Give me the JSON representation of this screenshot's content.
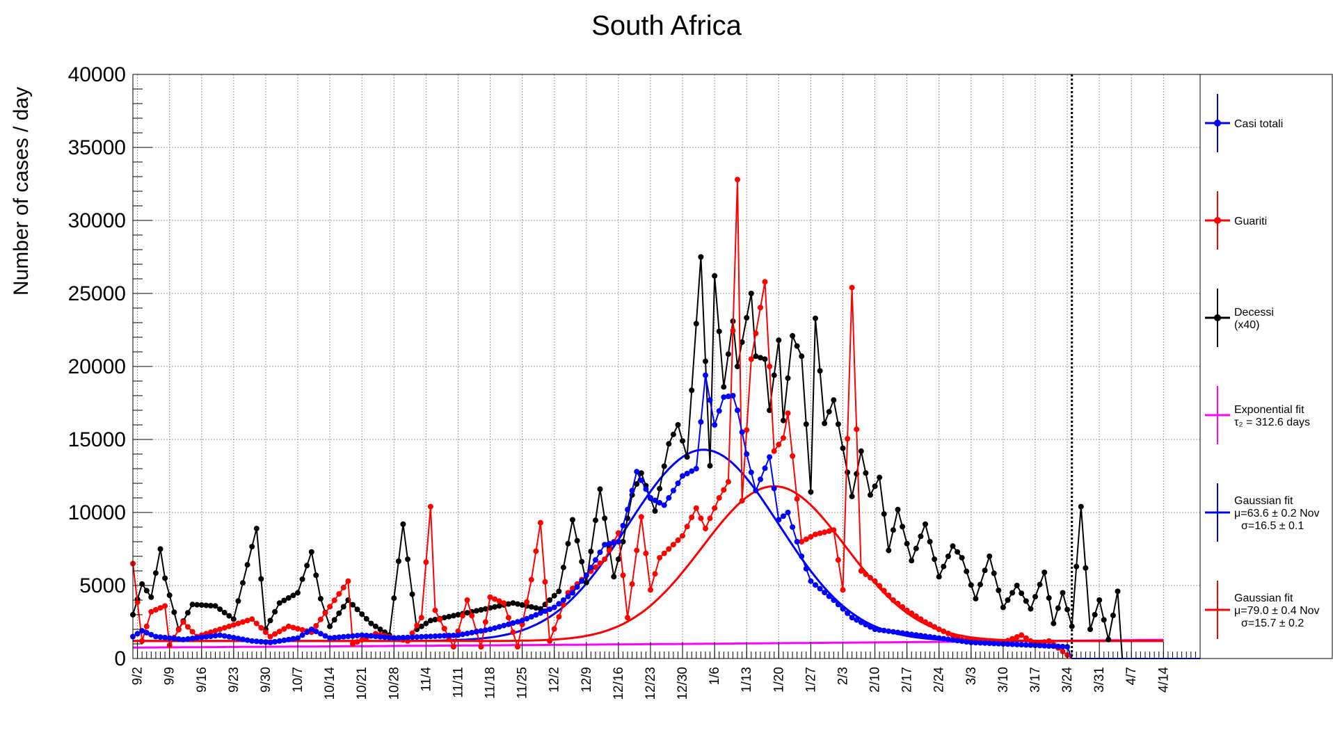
{
  "chart_data": {
    "type": "line",
    "title": "South Africa",
    "ylabel": "Number of cases / day",
    "xlabel": "",
    "ylim": [
      0,
      40000
    ],
    "yticks": [
      0,
      5000,
      10000,
      15000,
      20000,
      25000,
      30000,
      35000,
      40000
    ],
    "ytick_labels": [
      "0",
      "5000",
      "10000",
      "15000",
      "20000",
      "25000",
      "30000",
      "35000",
      "40000"
    ],
    "x_start": "9/1",
    "x_end": "4/22",
    "date_ticks": [
      "9/2",
      "9/9",
      "9/16",
      "9/23",
      "9/30",
      "10/7",
      "10/14",
      "10/21",
      "10/28",
      "11/4",
      "11/11",
      "11/18",
      "11/25",
      "12/2",
      "12/9",
      "12/16",
      "12/23",
      "12/30",
      "1/6",
      "1/13",
      "1/20",
      "1/27",
      "2/3",
      "2/10",
      "2/17",
      "2/24",
      "3/3",
      "3/10",
      "3/17",
      "3/24",
      "3/31",
      "4/7",
      "4/14"
    ],
    "grid": true,
    "legend_position": "right",
    "vertical_marker_date": "3/25",
    "colors": {
      "casi": "#0000ff",
      "guariti": "#ff0000",
      "decessi": "#000000",
      "exp_fit": "#ff00ff",
      "gauss_casi": "#0000ff",
      "gauss_guariti": "#ff0000"
    },
    "series": [
      {
        "name": "Casi totali",
        "color": "#0000ff",
        "knots": [
          [
            "9/1",
            1500
          ],
          [
            "9/3",
            1900
          ],
          [
            "9/6",
            1500
          ],
          [
            "9/12",
            1300
          ],
          [
            "9/20",
            1600
          ],
          [
            "9/27",
            1200
          ],
          [
            "10/1",
            1100
          ],
          [
            "10/7",
            1400
          ],
          [
            "10/10",
            2000
          ],
          [
            "10/14",
            1400
          ],
          [
            "10/21",
            1600
          ],
          [
            "10/28",
            1400
          ],
          [
            "11/4",
            1500
          ],
          [
            "11/11",
            1600
          ],
          [
            "11/18",
            2000
          ],
          [
            "11/25",
            2600
          ],
          [
            "12/2",
            3500
          ],
          [
            "12/6",
            4500
          ],
          [
            "12/9",
            5700
          ],
          [
            "12/13",
            7800
          ],
          [
            "12/16",
            8000
          ],
          [
            "12/18",
            10200
          ],
          [
            "12/20",
            12800
          ],
          [
            "12/23",
            11000
          ],
          [
            "12/26",
            10500
          ],
          [
            "12/30",
            12500
          ],
          [
            "1/2",
            13000
          ],
          [
            "1/4",
            19400
          ],
          [
            "1/6",
            16000
          ],
          [
            "1/8",
            17900
          ],
          [
            "1/10",
            18000
          ],
          [
            "1/11",
            17000
          ],
          [
            "1/13",
            14000
          ],
          [
            "1/15",
            11500
          ],
          [
            "1/18",
            13800
          ],
          [
            "1/20",
            9500
          ],
          [
            "1/22",
            10000
          ],
          [
            "1/25",
            7000
          ],
          [
            "1/27",
            5300
          ],
          [
            "2/1",
            4000
          ],
          [
            "2/5",
            2800
          ],
          [
            "2/10",
            2000
          ],
          [
            "2/17",
            1700
          ],
          [
            "2/24",
            1400
          ],
          [
            "3/3",
            1100
          ],
          [
            "3/10",
            1000
          ],
          [
            "3/17",
            900
          ],
          [
            "3/24",
            800
          ],
          [
            "3/25",
            0
          ],
          [
            "4/22",
            0
          ]
        ]
      },
      {
        "name": "Guariti",
        "color": "#ff0000",
        "knots": [
          [
            "9/1",
            6500
          ],
          [
            "9/3",
            1200
          ],
          [
            "9/5",
            3200
          ],
          [
            "9/8",
            3600
          ],
          [
            "9/9",
            900
          ],
          [
            "9/12",
            2500
          ],
          [
            "9/15",
            1500
          ],
          [
            "9/20",
            2000
          ],
          [
            "9/27",
            2700
          ],
          [
            "10/1",
            1500
          ],
          [
            "10/5",
            2200
          ],
          [
            "10/10",
            1800
          ],
          [
            "10/18",
            5300
          ],
          [
            "10/19",
            1000
          ],
          [
            "10/24",
            1700
          ],
          [
            "10/31",
            1200
          ],
          [
            "11/3",
            2800
          ],
          [
            "11/5",
            10400
          ],
          [
            "11/6",
            3300
          ],
          [
            "11/10",
            800
          ],
          [
            "11/13",
            4000
          ],
          [
            "11/16",
            800
          ],
          [
            "11/18",
            4200
          ],
          [
            "11/21",
            3800
          ],
          [
            "11/24",
            800
          ],
          [
            "11/27",
            5400
          ],
          [
            "11/29",
            9300
          ],
          [
            "12/1",
            1200
          ],
          [
            "12/5",
            4500
          ],
          [
            "12/9",
            5700
          ],
          [
            "12/13",
            6800
          ],
          [
            "12/16",
            8600
          ],
          [
            "12/18",
            2800
          ],
          [
            "12/21",
            9700
          ],
          [
            "12/23",
            4700
          ],
          [
            "12/25",
            6900
          ],
          [
            "12/28",
            7800
          ],
          [
            "12/30",
            8400
          ],
          [
            "1/2",
            10300
          ],
          [
            "1/4",
            8900
          ],
          [
            "1/7",
            11000
          ],
          [
            "1/9",
            12100
          ],
          [
            "1/11",
            32800
          ],
          [
            "1/12",
            10800
          ],
          [
            "1/14",
            20500
          ],
          [
            "1/17",
            25800
          ],
          [
            "1/19",
            14200
          ],
          [
            "1/21",
            15100
          ],
          [
            "1/22",
            16800
          ],
          [
            "1/25",
            8000
          ],
          [
            "1/28",
            8500
          ],
          [
            "2/1",
            8800
          ],
          [
            "2/3",
            4700
          ],
          [
            "2/5",
            25400
          ],
          [
            "2/7",
            6000
          ],
          [
            "2/10",
            5300
          ],
          [
            "2/14",
            4000
          ],
          [
            "2/17",
            3300
          ],
          [
            "2/21",
            2500
          ],
          [
            "2/24",
            2000
          ],
          [
            "3/1",
            1300
          ],
          [
            "3/6",
            1200
          ],
          [
            "3/10",
            1100
          ],
          [
            "3/14",
            1600
          ],
          [
            "3/17",
            1000
          ],
          [
            "3/20",
            1200
          ],
          [
            "3/25",
            0
          ],
          [
            "4/22",
            0
          ]
        ]
      },
      {
        "name": "Decessi",
        "color": "#000000",
        "knots": [
          [
            "9/1",
            3000
          ],
          [
            "9/3",
            5100
          ],
          [
            "9/5",
            4200
          ],
          [
            "9/7",
            7500
          ],
          [
            "9/8",
            5500
          ],
          [
            "9/11",
            2000
          ],
          [
            "9/14",
            3700
          ],
          [
            "9/19",
            3600
          ],
          [
            "9/23",
            2700
          ],
          [
            "9/28",
            8900
          ],
          [
            "9/30",
            2000
          ],
          [
            "10/3",
            3800
          ],
          [
            "10/7",
            4500
          ],
          [
            "10/10",
            7300
          ],
          [
            "10/12",
            4100
          ],
          [
            "10/14",
            2200
          ],
          [
            "10/18",
            4000
          ],
          [
            "10/23",
            2400
          ],
          [
            "10/27",
            1600
          ],
          [
            "10/30",
            9200
          ],
          [
            "11/2",
            2000
          ],
          [
            "11/5",
            2600
          ],
          [
            "11/11",
            3000
          ],
          [
            "11/17",
            3400
          ],
          [
            "11/23",
            3800
          ],
          [
            "11/29",
            3400
          ],
          [
            "12/3",
            4600
          ],
          [
            "12/6",
            9500
          ],
          [
            "12/9",
            5200
          ],
          [
            "12/12",
            11600
          ],
          [
            "12/15",
            5600
          ],
          [
            "12/17",
            8000
          ],
          [
            "12/19",
            11200
          ],
          [
            "12/21",
            12700
          ],
          [
            "12/24",
            10100
          ],
          [
            "12/27",
            14700
          ],
          [
            "12/29",
            16000
          ],
          [
            "12/31",
            13800
          ],
          [
            "1/3",
            27500
          ],
          [
            "1/5",
            13200
          ],
          [
            "1/6",
            26200
          ],
          [
            "1/8",
            18600
          ],
          [
            "1/10",
            23100
          ],
          [
            "1/11",
            20000
          ],
          [
            "1/14",
            25000
          ],
          [
            "1/15",
            20700
          ],
          [
            "1/17",
            20500
          ],
          [
            "1/18",
            17000
          ],
          [
            "1/20",
            21800
          ],
          [
            "1/21",
            16300
          ],
          [
            "1/23",
            22100
          ],
          [
            "1/25",
            20700
          ],
          [
            "1/27",
            11400
          ],
          [
            "1/28",
            23300
          ],
          [
            "1/30",
            16100
          ],
          [
            "2/1",
            17700
          ],
          [
            "2/3",
            14400
          ],
          [
            "2/5",
            11100
          ],
          [
            "2/7",
            14200
          ],
          [
            "2/9",
            11200
          ],
          [
            "2/11",
            12400
          ],
          [
            "2/13",
            7400
          ],
          [
            "2/15",
            10200
          ],
          [
            "2/18",
            6700
          ],
          [
            "2/21",
            9200
          ],
          [
            "2/24",
            5600
          ],
          [
            "2/27",
            7700
          ],
          [
            "3/1",
            6900
          ],
          [
            "3/4",
            4100
          ],
          [
            "3/7",
            7000
          ],
          [
            "3/10",
            3500
          ],
          [
            "3/13",
            5000
          ],
          [
            "3/16",
            3400
          ],
          [
            "3/19",
            5900
          ],
          [
            "3/21",
            2400
          ],
          [
            "3/23",
            4500
          ],
          [
            "3/25",
            2200
          ],
          [
            "3/27",
            10400
          ],
          [
            "3/29",
            2000
          ],
          [
            "3/31",
            4000
          ],
          [
            "4/2",
            1300
          ],
          [
            "4/4",
            4600
          ],
          [
            "4/5",
            0
          ],
          [
            "4/22",
            0
          ]
        ]
      }
    ],
    "fits": [
      {
        "name": "Exponential fit",
        "params": [
          "τ₂ = 312.6 days"
        ],
        "color": "#ff00ff",
        "kind": "exponential",
        "y_start": 750,
        "y_end": 1280,
        "tau_days": 312.6
      },
      {
        "name": "Gaussian fit",
        "params": [
          "μ=63.6 ± 0.2 Nov",
          "σ=16.5 ± 0.1"
        ],
        "color": "#0000ff",
        "kind": "gaussian",
        "mu_nov": 63.6,
        "sigma": 16.5,
        "amp": 13100,
        "base": 1200
      },
      {
        "name": "Gaussian fit",
        "params": [
          "μ=79.0 ± 0.4 Nov",
          "σ=15.7 ± 0.2"
        ],
        "color": "#ff0000",
        "kind": "gaussian",
        "mu_nov": 79.0,
        "sigma": 15.7,
        "amp": 10600,
        "base": 1200
      }
    ],
    "legend": [
      {
        "label": "Casi totali",
        "sublabel": "",
        "color": "#0000ff",
        "marker": true
      },
      {
        "label": "Guariti",
        "sublabel": "",
        "color": "#ff0000",
        "marker": true
      },
      {
        "label": "Decessi",
        "sublabel": "(x40)",
        "color": "#000000",
        "marker": true
      },
      {
        "label": "Exponential fit",
        "sublabel": "τ₂ = 312.6 days",
        "color": "#ff00ff",
        "marker": false
      },
      {
        "label": "Gaussian fit",
        "sublabel": "μ=63.6 ± 0.2 Nov",
        "sublabel2": "σ=16.5 ± 0.1",
        "color": "#0000ff",
        "marker": false
      },
      {
        "label": "Gaussian fit",
        "sublabel": "μ=79.0 ± 0.4 Nov",
        "sublabel2": "σ=15.7 ± 0.2",
        "color": "#ff0000",
        "marker": false
      }
    ]
  }
}
